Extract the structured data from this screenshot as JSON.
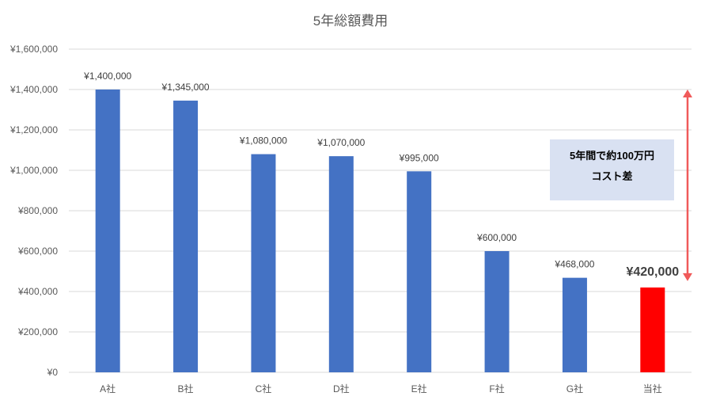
{
  "chart_data": {
    "type": "bar",
    "title": "5年総額費用",
    "xlabel": "",
    "ylabel": "",
    "categories": [
      "A社",
      "B社",
      "C社",
      "D社",
      "E社",
      "F社",
      "G社",
      "当社"
    ],
    "values": [
      1400000,
      1345000,
      1080000,
      1070000,
      995000,
      600000,
      468000,
      420000
    ],
    "data_labels": [
      "¥1,400,000",
      "¥1,345,000",
      "¥1,080,000",
      "¥1,070,000",
      "¥995,000",
      "¥600,000",
      "¥468,000",
      "¥420,000"
    ],
    "ylim": [
      0,
      1600000
    ],
    "yticks": [
      0,
      200000,
      400000,
      600000,
      800000,
      1000000,
      1200000,
      1400000,
      1600000
    ],
    "ytick_labels": [
      "¥0",
      "¥200,000",
      "¥400,000",
      "¥600,000",
      "¥800,000",
      "¥1,000,000",
      "¥1,200,000",
      "¥1,400,000",
      "¥1,600,000"
    ],
    "grid": true,
    "legend": "none",
    "highlight_index": 7,
    "colors": {
      "bar": "#4472C4",
      "highlight_bar": "#FF0000",
      "highlight_label": "#FF0000",
      "grid": "#D9D9D9",
      "arrow": "#F05A5A",
      "callout_bg": "#D9E1F2"
    },
    "annotations": [
      {
        "lines": [
          "5年間で約100万円",
          "コスト差"
        ],
        "arrow_from": 1400000,
        "arrow_to": 420000
      }
    ]
  }
}
